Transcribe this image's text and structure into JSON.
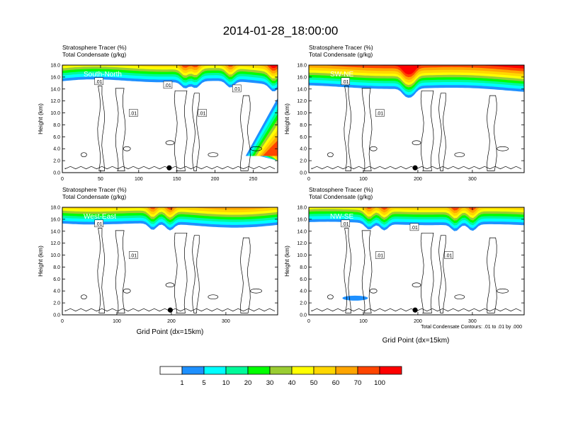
{
  "title": "2014-01-28_18:00:00",
  "colorbar": {
    "colors": [
      "#ffffff",
      "#1e90ff",
      "#00ffff",
      "#00fa9a",
      "#00ff00",
      "#9acd32",
      "#ffff00",
      "#ffd700",
      "#ffa500",
      "#ff4500",
      "#ff0000"
    ],
    "labels": [
      "1",
      "5",
      "10",
      "20",
      "30",
      "40",
      "50",
      "60",
      "70",
      "100"
    ]
  },
  "contour_note": "Total Condensate Contours: .01 to .01 by .000",
  "chart_data": [
    {
      "type": "heatmap",
      "id": "south-north",
      "header1": "Stratosphere Tracer   (%)",
      "header2": "Total Condensate   (g/kg)",
      "panel_label": "South-North",
      "ylabel": "Height (km)",
      "xlabel": "",
      "xlim": [
        0,
        282
      ],
      "ylim": [
        0,
        18
      ],
      "xticks": [
        "0",
        "50",
        "100",
        "150",
        "200",
        "250"
      ],
      "yticks": [
        "0.0",
        "2.0",
        "4.0",
        "6.0",
        "8.0",
        "10.0",
        "12.0",
        "14.0",
        "16.0",
        "18.0"
      ],
      "contour_labels": [
        ".01",
        ".01",
        ".01",
        ".01",
        ".01"
      ],
      "marker_x": 140
    },
    {
      "type": "heatmap",
      "id": "sw-ne",
      "header1": "Stratosphere Tracer   (%)",
      "header2": "Total Condensate   (g/kg)",
      "panel_label": "SW-NE",
      "ylabel": "Height (km)",
      "xlabel": "",
      "xlim": [
        0,
        395
      ],
      "ylim": [
        0,
        18
      ],
      "xticks": [
        "0",
        "100",
        "200",
        "300"
      ],
      "yticks": [
        "0.0",
        "2.0",
        "4.0",
        "6.0",
        "8.0",
        "10.0",
        "12.0",
        "14.0",
        "16.0",
        "18.0"
      ],
      "contour_labels": [
        ".01",
        ".01"
      ],
      "marker_x": 195
    },
    {
      "type": "heatmap",
      "id": "west-east",
      "header1": "Stratosphere Tracer   (%)",
      "header2": "Total Condensate   (g/kg)",
      "panel_label": "West-East",
      "ylabel": "Height (km)",
      "xlabel": "Grid Point (dx=15km)",
      "xlim": [
        0,
        395
      ],
      "ylim": [
        0,
        18
      ],
      "xticks": [
        "0",
        "100",
        "200",
        "300"
      ],
      "yticks": [
        "0.0",
        "2.0",
        "4.0",
        "6.0",
        "8.0",
        "10.0",
        "12.0",
        "14.0",
        "16.0",
        "18.0"
      ],
      "contour_labels": [
        ".01",
        ".01"
      ],
      "marker_x": 198
    },
    {
      "type": "heatmap",
      "id": "nw-se",
      "header1": "Stratosphere Tracer   (%)",
      "header2": "Total Condensate   (g/kg)",
      "panel_label": "NW-SE",
      "ylabel": "Height (km)",
      "xlabel": "Grid Point (dx=15km)",
      "xlim": [
        0,
        395
      ],
      "ylim": [
        0,
        18
      ],
      "xticks": [
        "0",
        "100",
        "200",
        "300"
      ],
      "yticks": [
        "0.0",
        "2.0",
        "4.0",
        "6.0",
        "8.0",
        "10.0",
        "12.0",
        "14.0",
        "16.0",
        "18.0"
      ],
      "contour_labels": [
        ".01",
        ".01",
        ".01",
        ".01"
      ],
      "marker_x": 195
    }
  ]
}
